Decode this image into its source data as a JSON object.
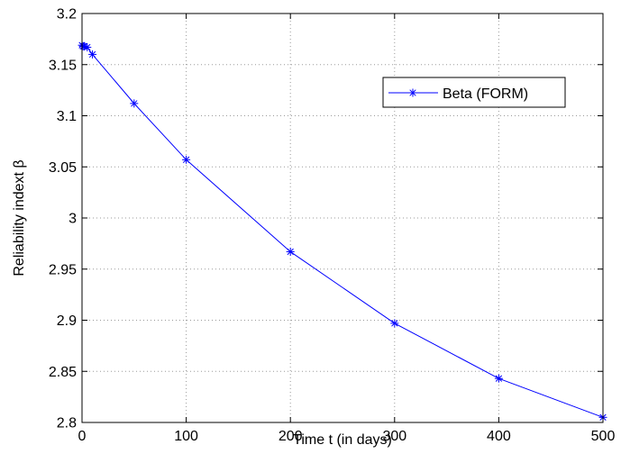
{
  "chart_data": {
    "type": "line",
    "xlabel": "Time t (in days)",
    "ylabel": "Reliability indext β",
    "xlim": [
      0,
      500
    ],
    "ylim": [
      2.8,
      3.2
    ],
    "xticks": [
      0,
      100,
      200,
      300,
      400,
      500
    ],
    "xtick_labels": [
      "0",
      "100",
      "200",
      "300",
      "400",
      "500"
    ],
    "yticks": [
      2.8,
      2.85,
      2.9,
      2.95,
      3.0,
      3.05,
      3.1,
      3.15,
      3.2
    ],
    "ytick_labels": [
      "2.8",
      "2.85",
      "2.9",
      "2.95",
      "3",
      "3.05",
      "3.1",
      "3.15",
      "3.2"
    ],
    "grid": true,
    "legend_position": "upper-right",
    "series": [
      {
        "name": "Beta (FORM)",
        "color": "#0000ff",
        "marker": "asterisk",
        "x": [
          0,
          1,
          2,
          5,
          10,
          50,
          100,
          200,
          300,
          400,
          500
        ],
        "y": [
          3.169,
          3.168,
          3.168,
          3.167,
          3.16,
          3.112,
          3.057,
          2.967,
          2.897,
          2.843,
          2.805
        ]
      }
    ]
  }
}
